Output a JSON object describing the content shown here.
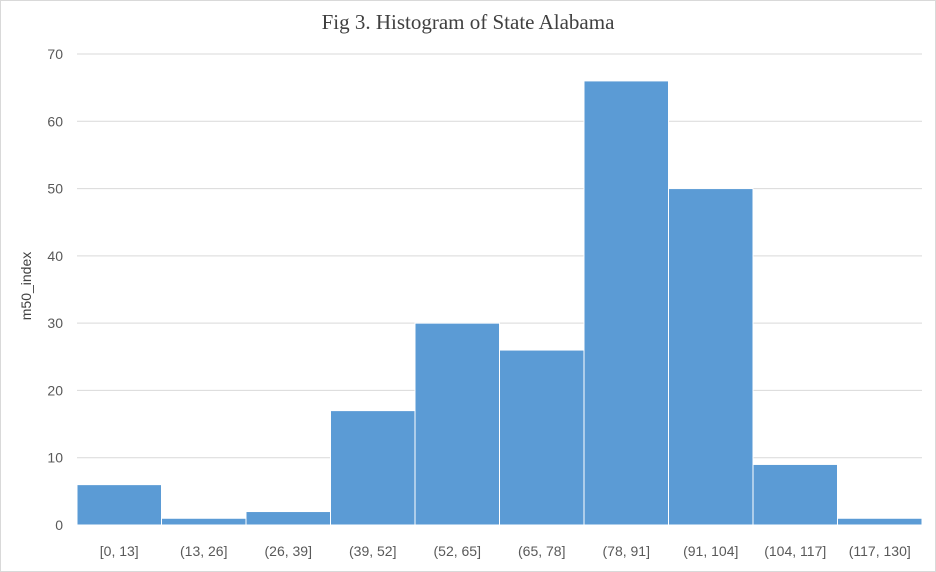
{
  "chart_data": {
    "type": "bar",
    "title": "Fig 3. Histogram of State Alabama",
    "xlabel": "",
    "ylabel": "m50_index",
    "categories": [
      "[0, 13]",
      "(13, 26]",
      "(26, 39]",
      "(39, 52]",
      "(52, 65]",
      "(65, 78]",
      "(78, 91]",
      "(91, 104]",
      "(104, 117]",
      "(117, 130]"
    ],
    "values": [
      6,
      1,
      2,
      17,
      30,
      26,
      66,
      50,
      9,
      1
    ],
    "ylim": [
      0,
      70
    ],
    "yticks": [
      0,
      10,
      20,
      30,
      40,
      50,
      60,
      70
    ],
    "grid": true,
    "bar_color": "#5b9bd5",
    "grid_color": "#d9d9d9"
  }
}
